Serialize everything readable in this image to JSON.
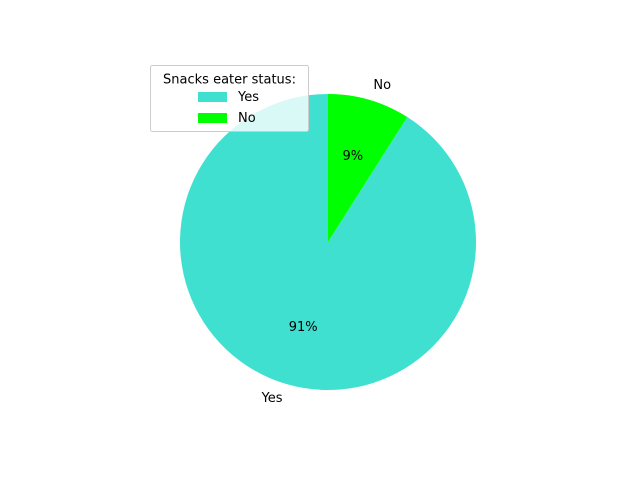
{
  "chart_data": {
    "type": "pie",
    "categories": [
      "Yes",
      "No"
    ],
    "values": [
      91,
      9
    ],
    "percent_labels": [
      "91%",
      "9%"
    ],
    "colors": [
      "#40e0d0",
      "#00ff00"
    ],
    "start_angle_deg": 90,
    "direction": "counterclockwise",
    "legend": {
      "title": "Snacks eater status:",
      "placement": "upper-left",
      "entries": [
        "Yes",
        "No"
      ]
    }
  }
}
